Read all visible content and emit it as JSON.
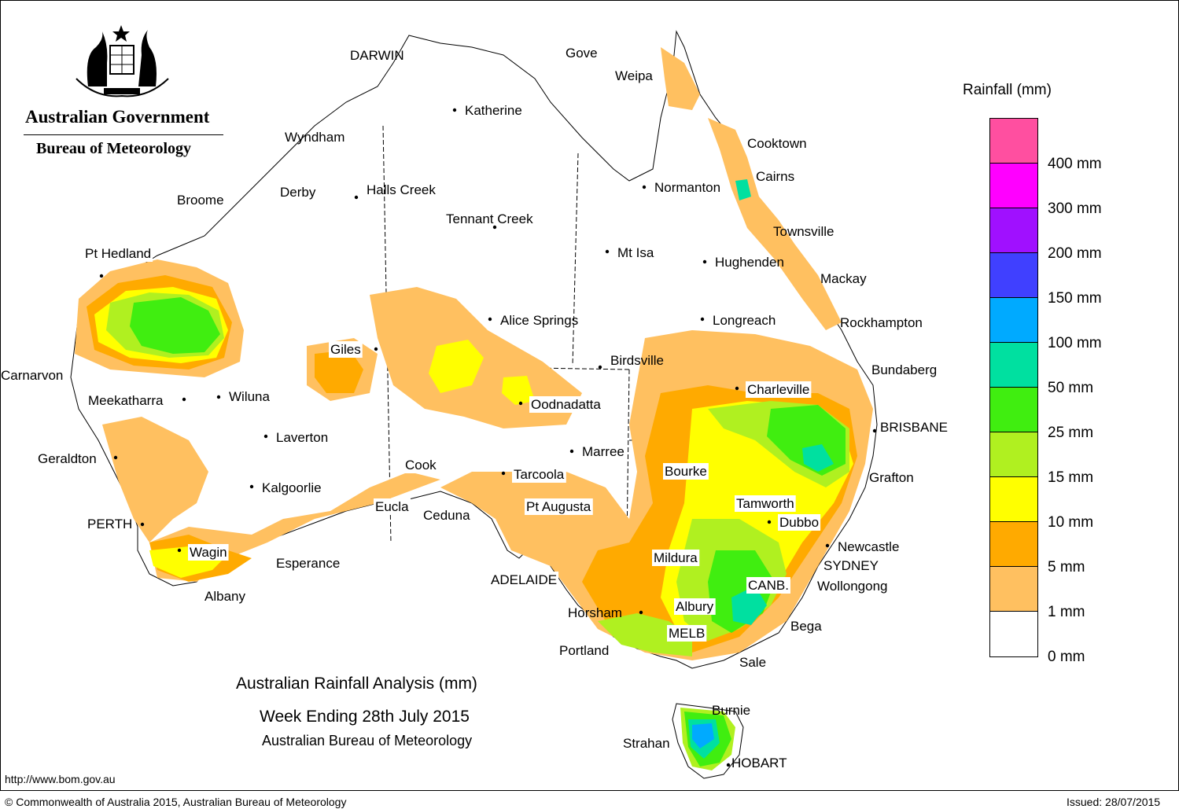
{
  "branding": {
    "government": "Australian Government",
    "agency": "Bureau of Meteorology",
    "crest_icon": "coat-of-arms-icon"
  },
  "title": {
    "line1": "Australian Rainfall Analysis (mm)",
    "line2": "Week Ending 28th July 2015",
    "line3": "Australian Bureau of Meteorology"
  },
  "legend": {
    "title": "Rainfall (mm)",
    "colors": [
      "#ff4fa0",
      "#ff00ff",
      "#a010ff",
      "#4040ff",
      "#00aaff",
      "#00e0a0",
      "#40ee10",
      "#b0f020",
      "#ffff00",
      "#ffaa00",
      "#ffc060",
      "#ffffff"
    ],
    "labels": [
      "400 mm",
      "300 mm",
      "200 mm",
      "150 mm",
      "100 mm",
      "50 mm",
      "25 mm",
      "15 mm",
      "10 mm",
      "5 mm",
      "1 mm",
      "0 mm"
    ]
  },
  "places": [
    {
      "name": "DARWIN"
    },
    {
      "name": "Gove"
    },
    {
      "name": "Weipa"
    },
    {
      "name": "Katherine"
    },
    {
      "name": "Wyndham"
    },
    {
      "name": "Cooktown"
    },
    {
      "name": "Cairns"
    },
    {
      "name": "Derby"
    },
    {
      "name": "Halls Creek"
    },
    {
      "name": "Broome"
    },
    {
      "name": "Normanton"
    },
    {
      "name": "Tennant Creek"
    },
    {
      "name": "Townsville"
    },
    {
      "name": "Pt Hedland"
    },
    {
      "name": "Mt Isa"
    },
    {
      "name": "Hughenden"
    },
    {
      "name": "Mackay"
    },
    {
      "name": "Alice Springs"
    },
    {
      "name": "Longreach"
    },
    {
      "name": "Rockhampton"
    },
    {
      "name": "Giles"
    },
    {
      "name": "Birdsville"
    },
    {
      "name": "Bundaberg"
    },
    {
      "name": "Carnarvon"
    },
    {
      "name": "Charleville"
    },
    {
      "name": "Meekatharra"
    },
    {
      "name": "Wiluna"
    },
    {
      "name": "Oodnadatta"
    },
    {
      "name": "BRISBANE"
    },
    {
      "name": "Laverton"
    },
    {
      "name": "Marree"
    },
    {
      "name": "Geraldton"
    },
    {
      "name": "Cook"
    },
    {
      "name": "Bourke"
    },
    {
      "name": "Tarcoola"
    },
    {
      "name": "Grafton"
    },
    {
      "name": "Kalgoorlie"
    },
    {
      "name": "Eucla"
    },
    {
      "name": "Pt Augusta"
    },
    {
      "name": "Tamworth"
    },
    {
      "name": "Ceduna"
    },
    {
      "name": "PERTH"
    },
    {
      "name": "Dubbo"
    },
    {
      "name": "Newcastle"
    },
    {
      "name": "Wagin"
    },
    {
      "name": "Esperance"
    },
    {
      "name": "Mildura"
    },
    {
      "name": "SYDNEY"
    },
    {
      "name": "ADELAIDE"
    },
    {
      "name": "CANB."
    },
    {
      "name": "Wollongong"
    },
    {
      "name": "Albany"
    },
    {
      "name": "Horsham"
    },
    {
      "name": "Albury"
    },
    {
      "name": "Bega"
    },
    {
      "name": "MELB"
    },
    {
      "name": "Portland"
    },
    {
      "name": "Sale"
    },
    {
      "name": "Burnie"
    },
    {
      "name": "Strahan"
    },
    {
      "name": "HOBART"
    }
  ],
  "footer": {
    "url": "http://www.bom.gov.au",
    "copyright": "© Commonwealth of Australia 2015, Australian Bureau of Meteorology",
    "issued": "Issued: 28/07/2015"
  }
}
